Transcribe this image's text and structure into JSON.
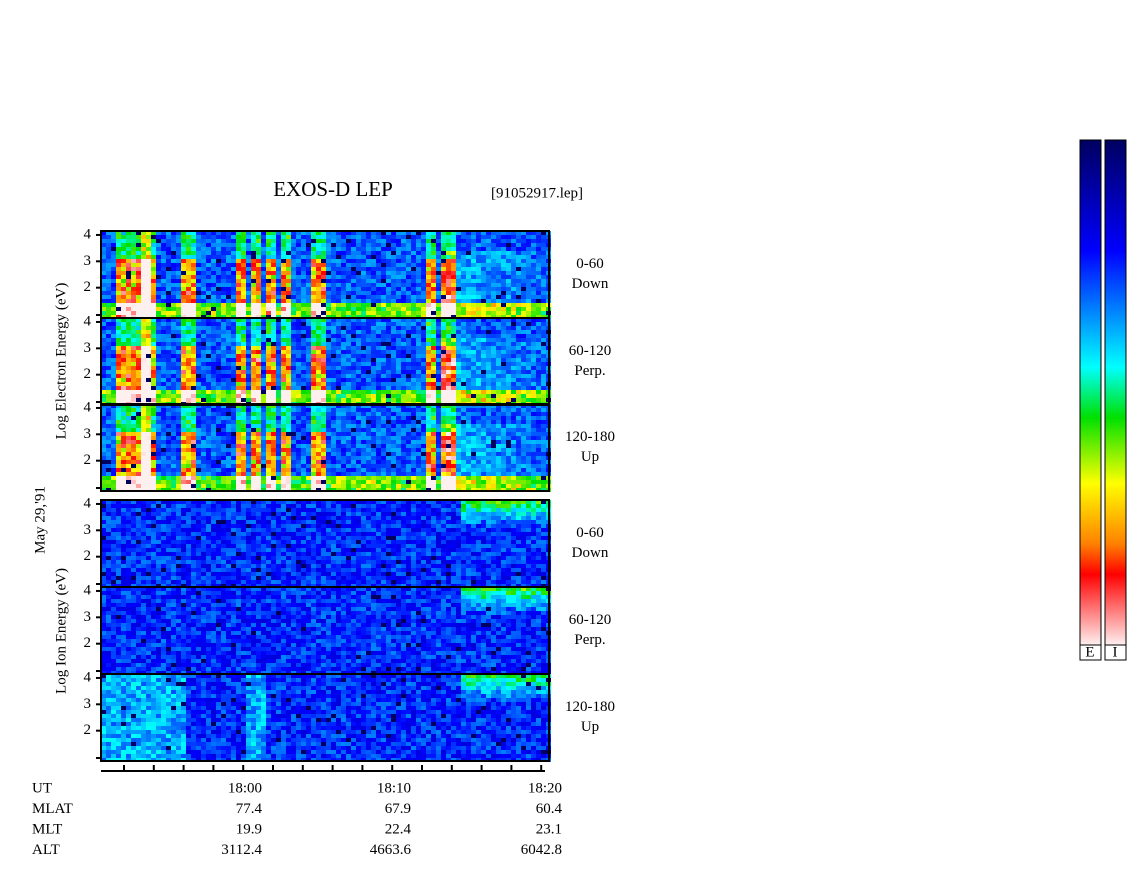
{
  "header": {
    "title": "EXOS-D LEP",
    "file": "[91052917.lep]"
  },
  "date": "May 29,'91",
  "electron": {
    "ylabel": "Log Electron Energy (eV)",
    "panels": [
      {
        "range": "0-60",
        "dir": "Down"
      },
      {
        "range": "60-120",
        "dir": "Perp."
      },
      {
        "range": "120-180",
        "dir": "Up"
      }
    ]
  },
  "ion": {
    "ylabel": "Log Ion Energy (eV)",
    "panels": [
      {
        "range": "0-60",
        "dir": "Down"
      },
      {
        "range": "60-120",
        "dir": "Perp."
      },
      {
        "range": "120-180",
        "dir": "Up"
      }
    ]
  },
  "yticks": [
    2,
    3,
    4
  ],
  "ylim": [
    0.85,
    4.15
  ],
  "ephemeris": {
    "rows": [
      {
        "name": "UT",
        "values": [
          "18:00",
          "18:10",
          "18:20"
        ]
      },
      {
        "name": "MLAT",
        "values": [
          77.4,
          67.9,
          60.4
        ]
      },
      {
        "name": "MLT",
        "values": [
          19.9,
          22.4,
          23.1
        ]
      },
      {
        "name": "ALT",
        "values": [
          3112.4,
          4663.6,
          6042.8
        ]
      }
    ]
  },
  "colorbar": {
    "labels": [
      "E",
      "I"
    ]
  }
}
